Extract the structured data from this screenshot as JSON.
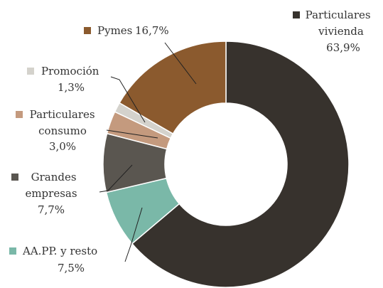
{
  "chart_data": {
    "type": "donut",
    "categories": [
      "Particulares vivienda",
      "AA.PP. y resto",
      "Grandes empresas",
      "Particulares consumo",
      "Promoción",
      "Pymes"
    ],
    "values": [
      63.9,
      7.5,
      7.7,
      3.0,
      1.3,
      16.7
    ],
    "value_labels": [
      "63,9%",
      "7,5%",
      "7,7%",
      "3,0%",
      "1,3%",
      "16,7%"
    ],
    "colors": [
      "#37322d",
      "#7ab8a8",
      "#5a5650",
      "#c49a7e",
      "#d4d2cc",
      "#8b5a2e"
    ]
  }
}
